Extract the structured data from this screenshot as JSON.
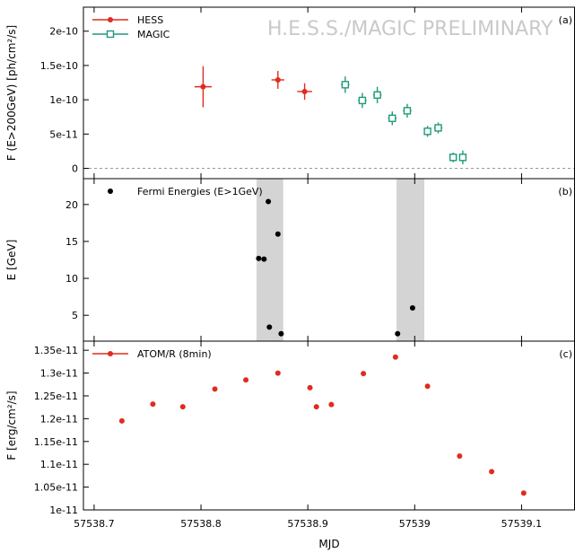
{
  "watermark": "H.E.S.S./MAGIC PRELIMINARY",
  "x_axis": {
    "label": "MJD",
    "range": [
      57538.69,
      57539.15
    ],
    "ticks": [
      57538.7,
      57538.8,
      57538.9,
      57539,
      57539.1
    ],
    "tick_labels": [
      "57538.7",
      "57538.8",
      "57538.9",
      "57539",
      "57539.1"
    ]
  },
  "colors": {
    "hess": "#e02b1f",
    "magic": "#1f9a7a",
    "fermi": "#000000",
    "atom": "#e02b1f",
    "band": "#d4d4d4"
  },
  "chart_data": [
    {
      "type": "scatter",
      "panel_tag": "(a)",
      "ylabel": "F (E>200GeV) [ph/cm²/s]",
      "ylim": [
        -1.5e-11,
        2.35e-10
      ],
      "yticks": [
        0,
        5e-11,
        1e-10,
        1.5e-10,
        2e-10
      ],
      "ytick_labels": [
        "0",
        "5e-11",
        "1e-10",
        "1.5e-10",
        "2e-10"
      ],
      "zero_line": true,
      "legend_position": "top-left",
      "series": [
        {
          "name": "HESS",
          "color": "#e02b1f",
          "marker": "circle",
          "points": [
            {
              "x": 57538.802,
              "y": 1.19e-10,
              "xerr": 0.008,
              "yerr": 3e-11
            },
            {
              "x": 57538.872,
              "y": 1.29e-10,
              "xerr": 0.006,
              "yerr": 1.3e-11
            },
            {
              "x": 57538.897,
              "y": 1.12e-10,
              "xerr": 0.007,
              "yerr": 1.2e-11
            }
          ]
        },
        {
          "name": "MAGIC",
          "color": "#1f9a7a",
          "marker": "square",
          "points": [
            {
              "x": 57538.935,
              "y": 1.22e-10,
              "xerr": 0.004,
              "yerr": 1.2e-11
            },
            {
              "x": 57538.951,
              "y": 9.9e-11,
              "xerr": 0.004,
              "yerr": 1.1e-11
            },
            {
              "x": 57538.965,
              "y": 1.07e-10,
              "xerr": 0.004,
              "yerr": 1.2e-11
            },
            {
              "x": 57538.979,
              "y": 7.3e-11,
              "xerr": 0.004,
              "yerr": 1e-11
            },
            {
              "x": 57538.993,
              "y": 8.4e-11,
              "xerr": 0.004,
              "yerr": 1e-11
            },
            {
              "x": 57539.012,
              "y": 5.4e-11,
              "xerr": 0.003,
              "yerr": 8e-12
            },
            {
              "x": 57539.022,
              "y": 5.9e-11,
              "xerr": 0.004,
              "yerr": 8e-12
            },
            {
              "x": 57539.036,
              "y": 1.6e-11,
              "xerr": 0.003,
              "yerr": 7e-12
            },
            {
              "x": 57539.045,
              "y": 1.6e-11,
              "xerr": 0.003,
              "yerr": 1e-11
            }
          ]
        }
      ]
    },
    {
      "type": "scatter",
      "panel_tag": "(b)",
      "ylabel": "E [GeV]",
      "ylim": [
        1.5,
        23.5
      ],
      "yticks": [
        5,
        10,
        15,
        20
      ],
      "ytick_labels": [
        "5",
        "10",
        "15",
        "20"
      ],
      "legend_position": "top-left",
      "shaded_bands": [
        [
          57538.852,
          57538.877
        ],
        [
          57538.983,
          57539.009
        ]
      ],
      "series": [
        {
          "name": "Fermi Energies (E>1GeV)",
          "color": "#000000",
          "marker": "circle",
          "points": [
            {
              "x": 57538.854,
              "y": 12.7
            },
            {
              "x": 57538.859,
              "y": 12.6
            },
            {
              "x": 57538.863,
              "y": 20.4
            },
            {
              "x": 57538.864,
              "y": 3.4
            },
            {
              "x": 57538.872,
              "y": 16.0
            },
            {
              "x": 57538.875,
              "y": 2.5
            },
            {
              "x": 57538.984,
              "y": 2.5
            },
            {
              "x": 57538.998,
              "y": 6.0
            }
          ]
        }
      ]
    },
    {
      "type": "scatter",
      "panel_tag": "(c)",
      "ylabel": "F [erg/cm²/s]",
      "ylim": [
        1e-11,
        1.37e-11
      ],
      "yticks": [
        1e-11,
        1.05e-11,
        1.1e-11,
        1.15e-11,
        1.2e-11,
        1.25e-11,
        1.3e-11,
        1.35e-11
      ],
      "ytick_labels": [
        "1e-11",
        "1.05e-11",
        "1.1e-11",
        "1.15e-11",
        "1.2e-11",
        "1.25e-11",
        "1.3e-11",
        "1.35e-11"
      ],
      "legend_position": "top-left",
      "series": [
        {
          "name": "ATOM/R (8min)",
          "color": "#e02b1f",
          "marker": "circle",
          "points": [
            {
              "x": 57538.726,
              "y": 1.195e-11,
              "yerr": 5e-14
            },
            {
              "x": 57538.755,
              "y": 1.232e-11,
              "yerr": 4e-14
            },
            {
              "x": 57538.783,
              "y": 1.226e-11,
              "yerr": 4e-14
            },
            {
              "x": 57538.813,
              "y": 1.265e-11,
              "yerr": 4e-14
            },
            {
              "x": 57538.842,
              "y": 1.285e-11,
              "yerr": 4e-14
            },
            {
              "x": 57538.872,
              "y": 1.3e-11,
              "yerr": 5e-14
            },
            {
              "x": 57538.902,
              "y": 1.268e-11,
              "yerr": 5e-14
            },
            {
              "x": 57538.908,
              "y": 1.226e-11,
              "yerr": 5e-14
            },
            {
              "x": 57538.922,
              "y": 1.231e-11,
              "yerr": 5e-14
            },
            {
              "x": 57538.952,
              "y": 1.299e-11,
              "yerr": 5e-14
            },
            {
              "x": 57538.982,
              "y": 1.335e-11,
              "yerr": 4e-14
            },
            {
              "x": 57539.012,
              "y": 1.271e-11,
              "yerr": 4e-14
            },
            {
              "x": 57539.042,
              "y": 1.118e-11,
              "yerr": 4e-14
            },
            {
              "x": 57539.072,
              "y": 1.084e-11,
              "yerr": 3e-14
            },
            {
              "x": 57539.102,
              "y": 1.037e-11,
              "yerr": 3e-14
            }
          ]
        }
      ]
    }
  ]
}
